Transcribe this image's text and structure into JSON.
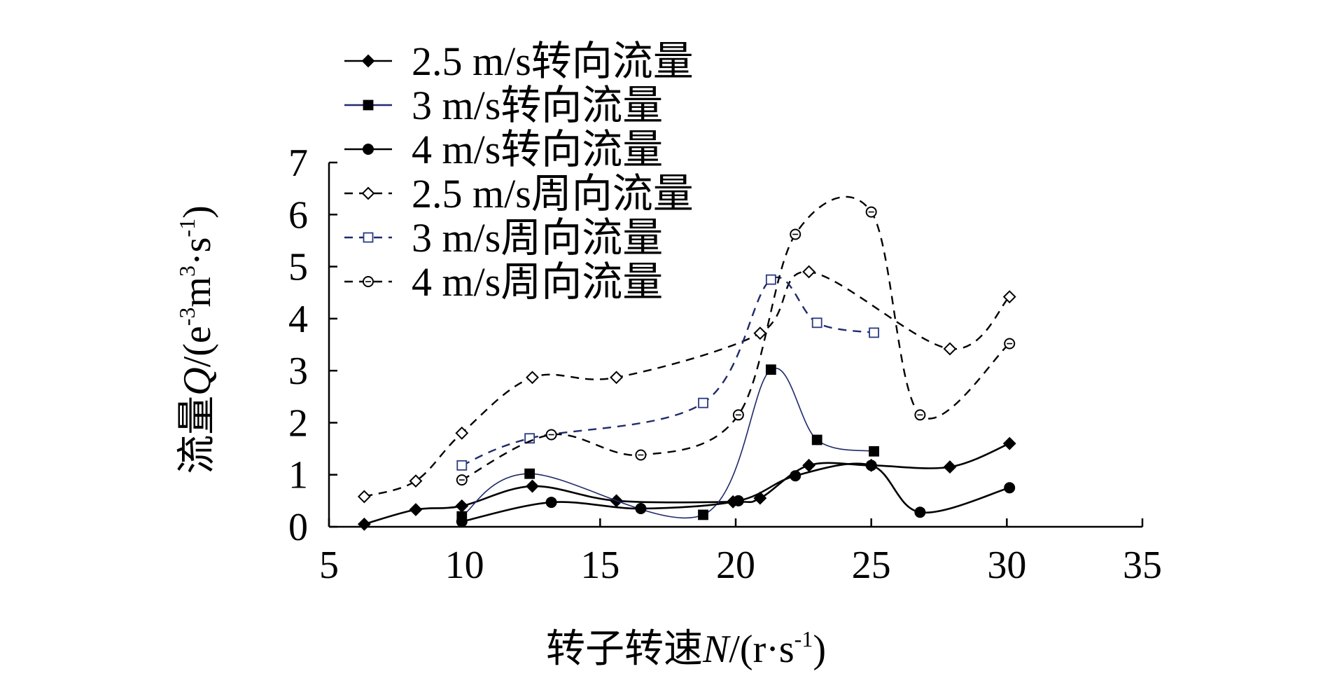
{
  "chart_data": {
    "type": "line",
    "title": "",
    "xlabel_main": "转子转速",
    "xlabel_var": "N",
    "xlabel_unit_pre": "/(r·s",
    "xlabel_unit_sup": "-1",
    "xlabel_unit_post": ")",
    "ylabel_main": "流量",
    "ylabel_var": "Q",
    "ylabel_unit_a": "/(e",
    "ylabel_unit_sup1": "-3",
    "ylabel_unit_b": "m",
    "ylabel_unit_sup2": "3",
    "ylabel_unit_c": "·s",
    "ylabel_unit_sup3": "-1",
    "ylabel_unit_d": ")",
    "xlim": [
      5,
      35
    ],
    "ylim": [
      0,
      7
    ],
    "xticks": [
      5,
      10,
      15,
      20,
      25,
      30,
      35
    ],
    "yticks": [
      0,
      1,
      2,
      3,
      4,
      5,
      6,
      7
    ],
    "legend_position": "top-left",
    "series": [
      {
        "name": "2.5 m/s转向流量",
        "marker": "diamond-filled",
        "dash": "solid",
        "color": "#000000",
        "x": [
          6.3,
          8.2,
          9.9,
          12.5,
          15.6,
          19.9,
          20.9,
          22.7,
          25.0,
          27.9,
          30.1
        ],
        "y": [
          0.05,
          0.33,
          0.4,
          0.78,
          0.5,
          0.48,
          0.55,
          1.18,
          1.18,
          1.15,
          1.6
        ]
      },
      {
        "name": "3 m/s转向流量",
        "marker": "square-filled",
        "dash": "solid",
        "color": "#1f2a6b",
        "x": [
          9.9,
          12.4,
          18.8,
          21.3,
          23.0,
          25.1
        ],
        "y": [
          0.2,
          1.02,
          0.23,
          3.02,
          1.67,
          1.45
        ]
      },
      {
        "name": "4 m/s转向流量",
        "marker": "circle-filled",
        "dash": "solid",
        "color": "#000000",
        "x": [
          9.9,
          13.2,
          16.5,
          20.1,
          22.2,
          25.0,
          26.8,
          30.1
        ],
        "y": [
          0.1,
          0.47,
          0.35,
          0.5,
          0.98,
          1.18,
          0.28,
          0.75
        ]
      },
      {
        "name": "2.5 m/s周向流量",
        "marker": "diamond-open",
        "dash": "dashed",
        "color": "#000000",
        "x": [
          6.3,
          8.2,
          9.9,
          12.5,
          15.6,
          20.9,
          22.7,
          27.9,
          30.1
        ],
        "y": [
          0.58,
          0.88,
          1.8,
          2.87,
          2.87,
          3.72,
          4.9,
          3.42,
          4.42
        ]
      },
      {
        "name": "3 m/s周向流量",
        "marker": "square-open",
        "dash": "dashed",
        "color": "#1f2a6b",
        "x": [
          9.9,
          12.4,
          18.8,
          21.3,
          23.0,
          25.1
        ],
        "y": [
          1.18,
          1.7,
          2.38,
          4.75,
          3.92,
          3.73
        ]
      },
      {
        "name": "4 m/s周向流量",
        "marker": "circle-open",
        "dash": "dashed",
        "color": "#000000",
        "x": [
          9.9,
          13.2,
          16.5,
          20.1,
          22.2,
          25.0,
          26.8,
          30.1
        ],
        "y": [
          0.9,
          1.77,
          1.38,
          2.15,
          5.62,
          6.05,
          2.15,
          3.52
        ]
      }
    ]
  }
}
